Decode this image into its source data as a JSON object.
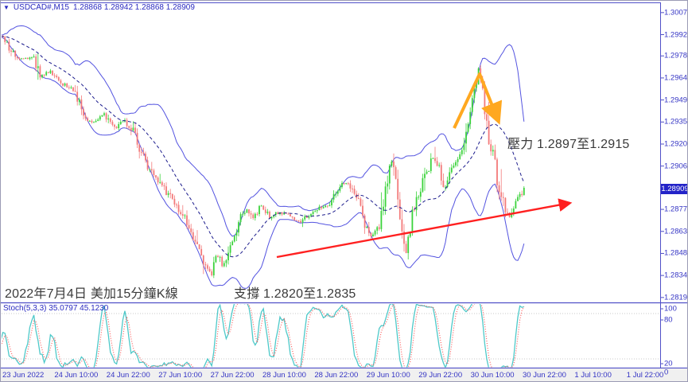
{
  "window": {
    "symbol_dropdown_icon": "▼",
    "symbol": "USDCAD#,M15",
    "ohlc_values": "1.28868 1.28942 1.28868 1.28909"
  },
  "annotations": {
    "resistance": "壓力 1.2897至1.2915",
    "support": "支撐 1.2820至1.2835",
    "date_note": "2022年7月4日 美加15分鐘K線"
  },
  "indicator": {
    "stoch_label": "Stoch(5,3,3) 35.0797 45.1230",
    "stoch_k": 35.0797,
    "stoch_d": 45.123,
    "axis_labels": [
      "100",
      "80",
      "20",
      "0"
    ],
    "levels": [
      80,
      20
    ]
  },
  "price_axis": {
    "ticks": [
      "1.30070",
      "1.29925",
      "1.29785",
      "1.29640",
      "1.29495",
      "1.29350",
      "1.29205",
      "1.29060",
      "1.28775",
      "1.28630",
      "1.28485",
      "1.28340",
      "1.28195"
    ],
    "current_price": "1.28909"
  },
  "time_axis": {
    "labels": [
      "23 Jun 2022",
      "24 Jun 10:00",
      "24 Jun 22:00",
      "27 Jun 10:00",
      "27 Jun 22:00",
      "28 Jun 10:00",
      "28 Jun 22:00",
      "29 Jun 10:00",
      "29 Jun 22:00",
      "30 Jun 10:00",
      "30 Jun 22:00",
      "1 Jul 10:00",
      "1 Jul 22:00"
    ]
  },
  "colors": {
    "band": "#5353e0",
    "mid_band": "#1a1a8c",
    "bull": "#3bd33b",
    "bear": "#f37a7a",
    "stoch_k": "#4ec9c9",
    "stoch_d": "#ff5050",
    "level_dots": "#c9c9c9",
    "frame": "#5050c8",
    "trend_arrow": "#ff2020",
    "peak_arrow": "#ffa820",
    "axis_text": "#3434c4",
    "badge_bg": "#2323c8"
  },
  "chart_data": {
    "type": "candlestick",
    "symbol": "USDCAD#",
    "timeframe": "M15",
    "title": "USDCAD# M15 with Bollinger Bands(20,2) and Stochastic(5,3,3)",
    "current_bar": {
      "open": 1.28868,
      "high": 1.28942,
      "low": 1.28868,
      "close": 1.28909
    },
    "y_axis_range": [
      1.2817,
      1.3011
    ],
    "stoch_range": [
      0,
      100
    ],
    "resistance_zone": [
      1.2897,
      1.2915
    ],
    "support_zone": [
      1.282,
      1.2835
    ],
    "x_start": "23 Jun 2022",
    "x_end": "4 Jul 2022",
    "price_path": [
      [
        -55,
        1.2992
      ],
      [
        2,
        1.2991
      ],
      [
        12,
        1.2983
      ],
      [
        25,
        1.2976
      ],
      [
        40,
        1.2978
      ],
      [
        50,
        1.2965
      ],
      [
        62,
        1.2968
      ],
      [
        78,
        1.296
      ],
      [
        92,
        1.2957
      ],
      [
        105,
        1.2936
      ],
      [
        118,
        1.2934
      ],
      [
        130,
        1.2941
      ],
      [
        142,
        1.2931
      ],
      [
        155,
        1.2936
      ],
      [
        168,
        1.2928
      ],
      [
        180,
        1.291
      ],
      [
        192,
        1.29
      ],
      [
        205,
        1.2892
      ],
      [
        218,
        1.2881
      ],
      [
        230,
        1.2873
      ],
      [
        242,
        1.2858
      ],
      [
        255,
        1.2842
      ],
      [
        265,
        1.2834
      ],
      [
        272,
        1.2847
      ],
      [
        280,
        1.2839
      ],
      [
        290,
        1.2855
      ],
      [
        300,
        1.2873
      ],
      [
        310,
        1.2878
      ],
      [
        318,
        1.2871
      ],
      [
        327,
        1.288
      ],
      [
        338,
        1.2872
      ],
      [
        350,
        1.2876
      ],
      [
        362,
        1.2873
      ],
      [
        375,
        1.2869
      ],
      [
        388,
        1.2874
      ],
      [
        400,
        1.2878
      ],
      [
        412,
        1.2881
      ],
      [
        422,
        1.2889
      ],
      [
        432,
        1.2895
      ],
      [
        440,
        1.2892
      ],
      [
        450,
        1.2881
      ],
      [
        458,
        1.2868
      ],
      [
        466,
        1.286
      ],
      [
        475,
        1.2866
      ],
      [
        483,
        1.289
      ],
      [
        490,
        1.2912
      ],
      [
        496,
        1.2902
      ],
      [
        503,
        1.2868
      ],
      [
        508,
        1.2845
      ],
      [
        514,
        1.2862
      ],
      [
        520,
        1.288
      ],
      [
        528,
        1.2892
      ],
      [
        536,
        1.2902
      ],
      [
        544,
        1.2912
      ],
      [
        551,
        1.2903
      ],
      [
        557,
        1.2891
      ],
      [
        563,
        1.2899
      ],
      [
        570,
        1.2908
      ],
      [
        576,
        1.2915
      ],
      [
        582,
        1.292
      ],
      [
        588,
        1.2933
      ],
      [
        594,
        1.295
      ],
      [
        600,
        1.2971
      ],
      [
        604,
        1.296
      ],
      [
        609,
        1.2941
      ],
      [
        615,
        1.2921
      ],
      [
        621,
        1.2906
      ],
      [
        627,
        1.2891
      ],
      [
        633,
        1.2878
      ],
      [
        639,
        1.2871
      ],
      [
        645,
        1.2879
      ],
      [
        651,
        1.2885
      ],
      [
        658,
        1.28909
      ]
    ],
    "trendline": {
      "from": [
        347,
        322
      ],
      "to": [
        716,
        254
      ]
    },
    "peak_marker": {
      "points": [
        [
          570,
          160
        ],
        [
          602,
          92
        ],
        [
          626,
          152
        ]
      ]
    },
    "stoch_levels": [
      80,
      20
    ]
  }
}
